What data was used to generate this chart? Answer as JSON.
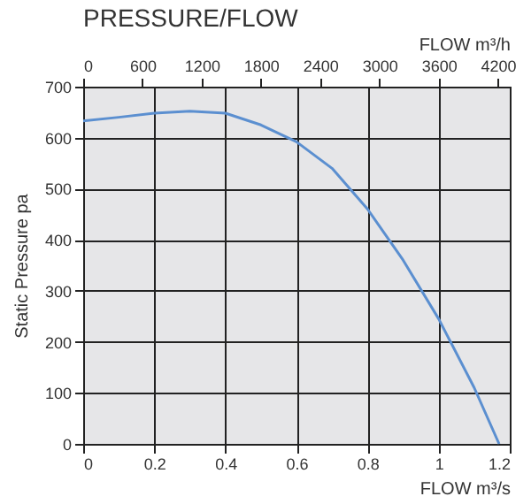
{
  "chart_data": {
    "type": "line",
    "title": "PRESSURE/FLOW",
    "xlabel": "FLOW m³/s",
    "x2label": "FLOW m³/h",
    "ylabel": "Static Pressure pa",
    "x": [
      0,
      0.1,
      0.2,
      0.3,
      0.4,
      0.5,
      0.6,
      0.7,
      0.8,
      0.9,
      1.0,
      1.1,
      1.17
    ],
    "series": [
      {
        "color": "#5b8fd0",
        "values": [
          633,
          640,
          648,
          652,
          648,
          625,
          592,
          540,
          460,
          360,
          245,
          110,
          0
        ]
      }
    ],
    "xlim": [
      0,
      1.2
    ],
    "xticks": [
      0,
      0.2,
      0.4,
      0.6,
      0.8,
      1,
      1.2
    ],
    "x2lim": [
      0,
      4320
    ],
    "x2ticks": [
      0,
      600,
      1200,
      1800,
      2400,
      3000,
      3600,
      4200
    ],
    "ylim": [
      0,
      700
    ],
    "yticks": [
      0,
      100,
      200,
      300,
      400,
      500,
      600,
      700
    ],
    "grid": true,
    "marker": "none",
    "line_style": "solid"
  }
}
